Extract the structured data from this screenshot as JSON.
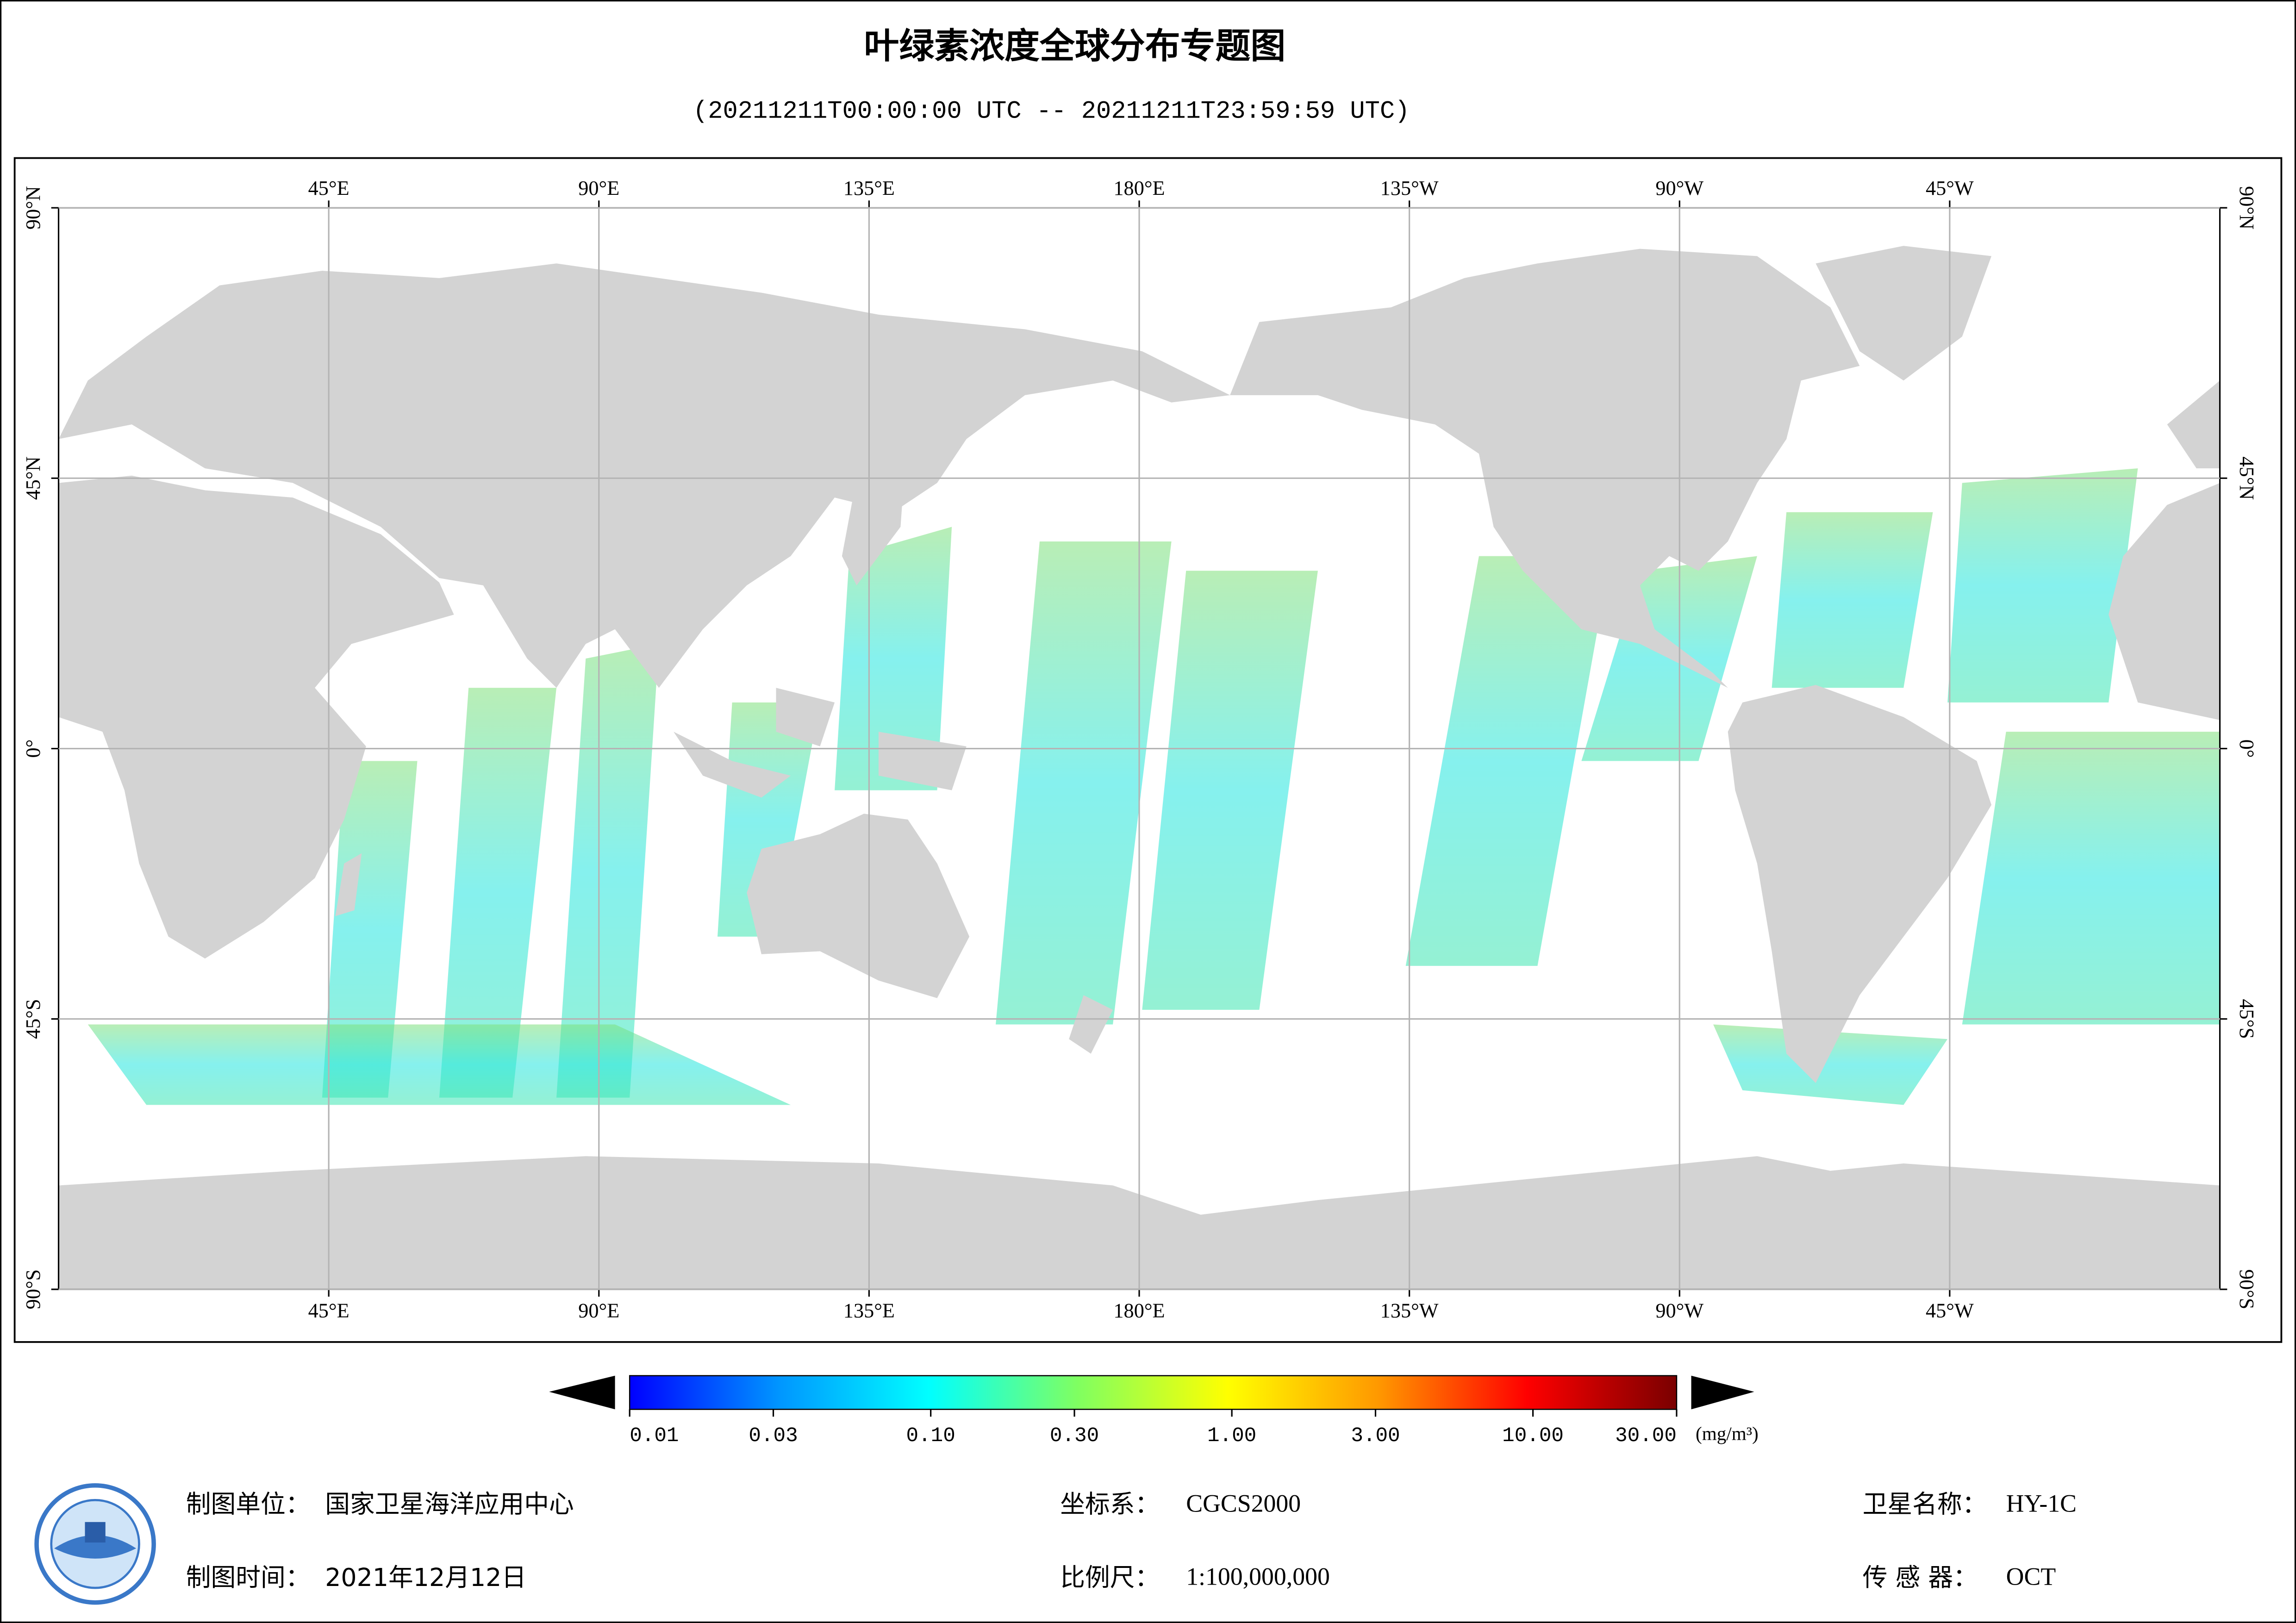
{
  "header": {
    "title": "叶绿素浓度全球分布专题图",
    "subtitle": "(20211211T00:00:00 UTC -- 20211211T23:59:59 UTC)"
  },
  "map": {
    "lon_range": [
      0,
      360
    ],
    "lat_range": [
      -90,
      90
    ],
    "grid": true,
    "lon_ticks": [
      {
        "value": 45,
        "label": "45°E"
      },
      {
        "value": 90,
        "label": "90°E"
      },
      {
        "value": 135,
        "label": "135°E"
      },
      {
        "value": 180,
        "label": "180°E"
      },
      {
        "value": 225,
        "label": "135°W"
      },
      {
        "value": 270,
        "label": "90°W"
      },
      {
        "value": 315,
        "label": "45°W"
      }
    ],
    "lat_ticks": [
      {
        "value": 90,
        "label": "90°N"
      },
      {
        "value": 45,
        "label": "45°N"
      },
      {
        "value": 0,
        "label": "0°"
      },
      {
        "value": -45,
        "label": "45°S"
      },
      {
        "value": -90,
        "label": "90°S"
      }
    ]
  },
  "colorbar": {
    "range": [
      0.01,
      30
    ],
    "scale": "log",
    "colors": [
      "#0000ff",
      "#0096ff",
      "#00ffff",
      "#80ff60",
      "#ffff00",
      "#ff9900",
      "#ff0000",
      "#7a0000"
    ],
    "ticks": [
      0.01,
      0.03,
      {
        "value": 0.1,
        "label": "0.10"
      },
      {
        "value": 0.3,
        "label": "0.30"
      },
      {
        "value": 1,
        "label": "1.00"
      },
      {
        "value": 3,
        "label": "3.00"
      },
      {
        "value": 10,
        "label": "10.00"
      },
      {
        "value": 30,
        "label": "30.00"
      }
    ],
    "unit": "(mg/m³)"
  },
  "footer": {
    "unit": {
      "label": "制图单位：",
      "value": "国家卫星海洋应用中心"
    },
    "date": {
      "label": "制图时间：",
      "value": "2021年12月12日"
    },
    "crs": {
      "label": "坐标系：",
      "value": "CGCS2000"
    },
    "scale": {
      "label": "比例尺：",
      "value": "1:100,000,000"
    },
    "satellite": {
      "label": "卫星名称：",
      "value": "HY-1C"
    },
    "sensor": {
      "label": "传 感 器：",
      "value": "OCT"
    }
  }
}
